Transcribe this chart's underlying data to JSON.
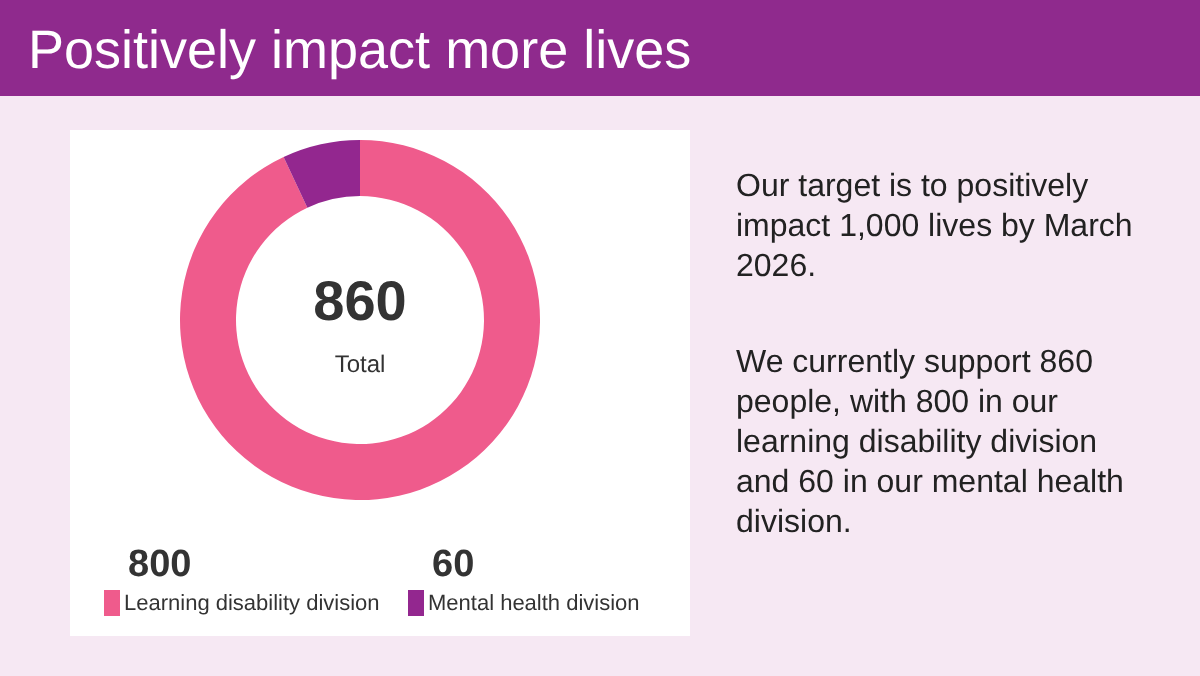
{
  "chart_data": {
    "type": "donut",
    "title": "Positively impact more lives",
    "categories": [
      "Learning disability division",
      "Mental health division"
    ],
    "values": [
      800,
      60
    ],
    "colors": [
      "#ef5b8c",
      "#93278f"
    ],
    "data_labels": true,
    "legend": "bottom",
    "annotations": [
      "860",
      "Total",
      "Our target is to positively impact 1,000 lives by March 2026.",
      "We currently support 860 people, with 800 in our learning disability division and 60 in our mental health division."
    ]
  }
}
